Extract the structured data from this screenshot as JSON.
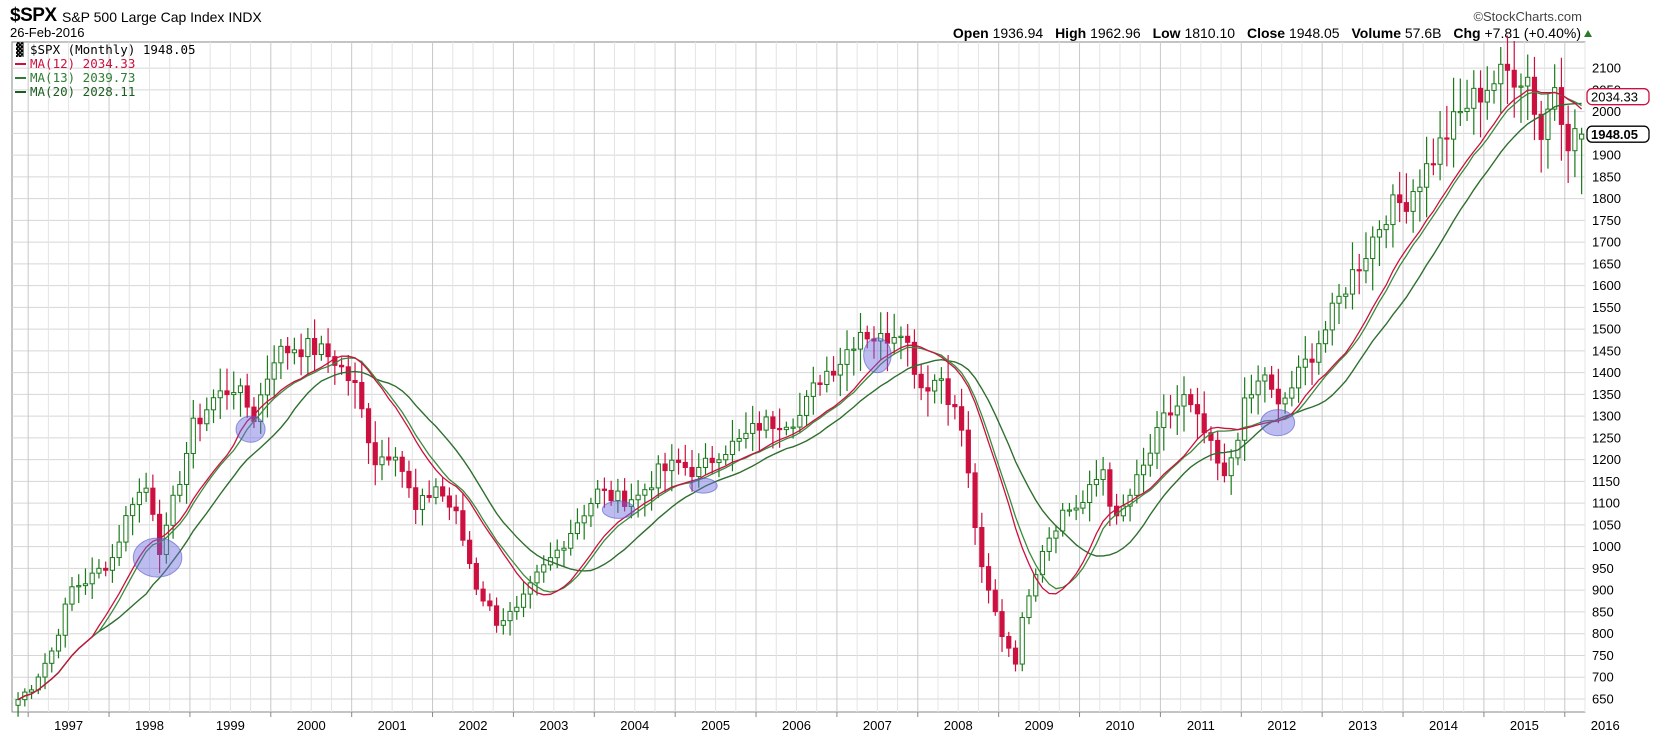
{
  "header": {
    "symbol": "$SPX",
    "name": "S&P 500 Large Cap Index",
    "exchange": "INDX",
    "date": "26-Feb-2016",
    "brand": "©StockCharts.com",
    "open_label": "Open",
    "open": "1936.94",
    "high_label": "High",
    "high": "1962.96",
    "low_label": "Low",
    "low": "1810.10",
    "close_label": "Close",
    "close": "1948.05",
    "volume_label": "Volume",
    "volume": "57.6B",
    "chg_label": "Chg",
    "chg": "+7.81 (+0.40%)"
  },
  "legend": [
    {
      "text": "$SPX (Monthly) 1948.05",
      "color": "#000000"
    },
    {
      "text": "MA(12) 2034.33",
      "color": "#cc1040"
    },
    {
      "text": "MA(13) 2039.73",
      "color": "#2e7d32"
    },
    {
      "text": "MA(20) 2028.11",
      "color": "#1b5e20"
    }
  ],
  "price_tags": [
    {
      "text": "2034.33",
      "value": 2034.33,
      "color": "#cc1040"
    },
    {
      "text": "1948.05",
      "value": 1948.05,
      "color": "#000000"
    }
  ],
  "colors": {
    "up": "#1a7a1a",
    "down": "#cc1040",
    "ma12": "#cc1040",
    "ma13": "#3a8a3a",
    "ma20": "#2f6f2f",
    "highlight": "#6b6be0",
    "grid": "#d6d6d6"
  },
  "chart_data": {
    "type": "candlestick",
    "interval": "monthly",
    "ylim": [
      620,
      2160
    ],
    "yticks": [
      650,
      700,
      750,
      800,
      850,
      900,
      950,
      1000,
      1050,
      1100,
      1150,
      1200,
      1250,
      1300,
      1350,
      1400,
      1450,
      1500,
      1550,
      1600,
      1650,
      1700,
      1750,
      1800,
      1850,
      1900,
      1950,
      2000,
      2050,
      2100
    ],
    "xlim": [
      1996.8,
      2016.25
    ],
    "year_labels": [
      "1997",
      "1998",
      "1999",
      "2000",
      "2001",
      "2002",
      "2003",
      "2004",
      "2005",
      "2006",
      "2007",
      "2008",
      "2009",
      "2010",
      "2011",
      "2012",
      "2013",
      "2014",
      "2015",
      "2016"
    ],
    "close_path": [
      [
        1996.83,
        648
      ],
      [
        1997.0,
        680
      ],
      [
        1997.25,
        760
      ],
      [
        1997.5,
        905
      ],
      [
        1997.75,
        930
      ],
      [
        1998.0,
        975
      ],
      [
        1998.25,
        1110
      ],
      [
        1998.45,
        1140
      ],
      [
        1998.6,
        980
      ],
      [
        1998.75,
        1100
      ],
      [
        1999.0,
        1275
      ],
      [
        1999.25,
        1340
      ],
      [
        1999.5,
        1370
      ],
      [
        1999.75,
        1300
      ],
      [
        2000.0,
        1440
      ],
      [
        2000.25,
        1460
      ],
      [
        2000.5,
        1455
      ],
      [
        2000.75,
        1430
      ],
      [
        2001.0,
        1365
      ],
      [
        2001.25,
        1200
      ],
      [
        2001.5,
        1225
      ],
      [
        2001.75,
        1080
      ],
      [
        2002.0,
        1140
      ],
      [
        2002.25,
        1070
      ],
      [
        2002.5,
        910
      ],
      [
        2002.75,
        830
      ],
      [
        2003.0,
        850
      ],
      [
        2003.25,
        930
      ],
      [
        2003.5,
        990
      ],
      [
        2003.75,
        1060
      ],
      [
        2004.0,
        1125
      ],
      [
        2004.25,
        1110
      ],
      [
        2004.5,
        1115
      ],
      [
        2004.75,
        1170
      ],
      [
        2005.0,
        1190
      ],
      [
        2005.25,
        1170
      ],
      [
        2005.5,
        1220
      ],
      [
        2005.75,
        1240
      ],
      [
        2006.0,
        1280
      ],
      [
        2006.25,
        1290
      ],
      [
        2006.5,
        1300
      ],
      [
        2006.75,
        1390
      ],
      [
        2007.0,
        1430
      ],
      [
        2007.25,
        1500
      ],
      [
        2007.5,
        1475
      ],
      [
        2007.75,
        1510
      ],
      [
        2008.0,
        1370
      ],
      [
        2008.25,
        1390
      ],
      [
        2008.5,
        1270
      ],
      [
        2008.75,
        940
      ],
      [
        2009.0,
        800
      ],
      [
        2009.17,
        740
      ],
      [
        2009.3,
        880
      ],
      [
        2009.5,
        1000
      ],
      [
        2009.75,
        1080
      ],
      [
        2010.0,
        1100
      ],
      [
        2010.25,
        1180
      ],
      [
        2010.4,
        1050
      ],
      [
        2010.75,
        1180
      ],
      [
        2011.0,
        1290
      ],
      [
        2011.25,
        1340
      ],
      [
        2011.5,
        1260
      ],
      [
        2011.75,
        1150
      ],
      [
        2012.0,
        1320
      ],
      [
        2012.25,
        1400
      ],
      [
        2012.4,
        1310
      ],
      [
        2012.75,
        1420
      ],
      [
        2013.0,
        1500
      ],
      [
        2013.25,
        1600
      ],
      [
        2013.5,
        1680
      ],
      [
        2013.75,
        1770
      ],
      [
        2014.0,
        1800
      ],
      [
        2014.25,
        1870
      ],
      [
        2014.5,
        1950
      ],
      [
        2014.75,
        2015
      ],
      [
        2015.0,
        2060
      ],
      [
        2015.25,
        2090
      ],
      [
        2015.5,
        2080
      ],
      [
        2015.67,
        1940
      ],
      [
        2015.83,
        2070
      ],
      [
        2016.0,
        1940
      ],
      [
        2016.15,
        1948
      ]
    ],
    "highlights": [
      {
        "x": 1998.6,
        "y": 975,
        "rx": 0.3,
        "ry": 45
      },
      {
        "x": 1999.75,
        "y": 1270,
        "rx": 0.18,
        "ry": 30
      },
      {
        "x": 2004.3,
        "y": 1085,
        "rx": 0.2,
        "ry": 20
      },
      {
        "x": 2005.35,
        "y": 1140,
        "rx": 0.17,
        "ry": 17
      },
      {
        "x": 2007.5,
        "y": 1440,
        "rx": 0.17,
        "ry": 40
      },
      {
        "x": 2012.45,
        "y": 1285,
        "rx": 0.21,
        "ry": 30
      }
    ]
  }
}
